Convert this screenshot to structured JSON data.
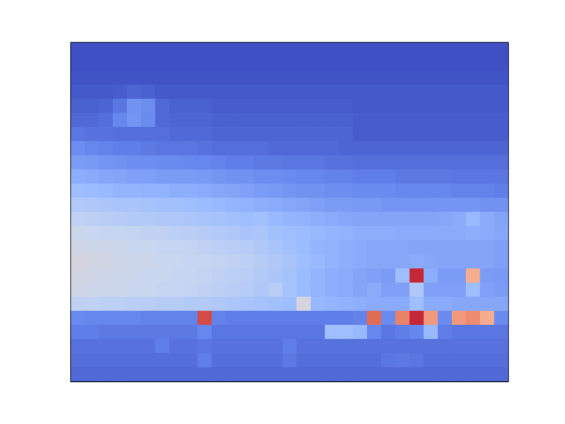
{
  "chart_data": {
    "type": "heatmap",
    "tick_labels": false,
    "color_range": [
      0,
      1
    ],
    "cells": [
      [
        0.01,
        0.01,
        0.01,
        0.01,
        0.01,
        0.01,
        0.01,
        0.01,
        0.01,
        0.01,
        0.01,
        0.01,
        0.01,
        0.01,
        0.01,
        0.01,
        0.01,
        0.01,
        0.01,
        0.01,
        0.01,
        0.01,
        0.01,
        0.01,
        0.01,
        0.01,
        0.01,
        0.01,
        0.01,
        0.01,
        0.01
      ],
      [
        0.01,
        0.01,
        0.01,
        0.01,
        0.01,
        0.01,
        0.01,
        0.01,
        0.01,
        0.01,
        0.01,
        0.01,
        0.01,
        0.01,
        0.01,
        0.01,
        0.01,
        0.01,
        0.01,
        0.01,
        0.01,
        0.01,
        0.01,
        0.01,
        0.01,
        0.01,
        0.01,
        0.01,
        0.01,
        0.01,
        0.01
      ],
      [
        0.02,
        0.02,
        0.02,
        0.02,
        0.02,
        0.02,
        0.02,
        0.02,
        0.02,
        0.02,
        0.02,
        0.02,
        0.02,
        0.02,
        0.02,
        0.02,
        0.02,
        0.02,
        0.02,
        0.02,
        0.02,
        0.02,
        0.02,
        0.02,
        0.02,
        0.02,
        0.02,
        0.02,
        0.02,
        0.02,
        0.02
      ],
      [
        0.03,
        0.03,
        0.03,
        0.04,
        0.06,
        0.05,
        0.03,
        0.03,
        0.03,
        0.03,
        0.03,
        0.03,
        0.03,
        0.03,
        0.03,
        0.03,
        0.03,
        0.03,
        0.03,
        0.03,
        0.03,
        0.03,
        0.03,
        0.03,
        0.03,
        0.03,
        0.03,
        0.03,
        0.03,
        0.03,
        0.03
      ],
      [
        0.05,
        0.05,
        0.06,
        0.1,
        0.17,
        0.16,
        0.07,
        0.05,
        0.05,
        0.05,
        0.04,
        0.04,
        0.04,
        0.04,
        0.04,
        0.04,
        0.04,
        0.04,
        0.04,
        0.04,
        0.03,
        0.03,
        0.03,
        0.03,
        0.03,
        0.03,
        0.03,
        0.03,
        0.03,
        0.03,
        0.03
      ],
      [
        0.07,
        0.07,
        0.08,
        0.14,
        0.18,
        0.15,
        0.07,
        0.06,
        0.06,
        0.06,
        0.05,
        0.05,
        0.05,
        0.05,
        0.05,
        0.05,
        0.05,
        0.05,
        0.05,
        0.05,
        0.04,
        0.04,
        0.04,
        0.04,
        0.04,
        0.04,
        0.04,
        0.04,
        0.04,
        0.04,
        0.04
      ],
      [
        0.1,
        0.09,
        0.09,
        0.08,
        0.08,
        0.08,
        0.08,
        0.07,
        0.07,
        0.07,
        0.06,
        0.06,
        0.06,
        0.06,
        0.06,
        0.06,
        0.06,
        0.06,
        0.06,
        0.06,
        0.04,
        0.04,
        0.04,
        0.04,
        0.04,
        0.04,
        0.04,
        0.04,
        0.04,
        0.04,
        0.04
      ],
      [
        0.16,
        0.14,
        0.13,
        0.12,
        0.12,
        0.11,
        0.1,
        0.1,
        0.1,
        0.09,
        0.08,
        0.08,
        0.08,
        0.08,
        0.07,
        0.07,
        0.07,
        0.07,
        0.07,
        0.06,
        0.06,
        0.06,
        0.06,
        0.06,
        0.06,
        0.06,
        0.06,
        0.06,
        0.06,
        0.06,
        0.06
      ],
      [
        0.2,
        0.19,
        0.18,
        0.17,
        0.16,
        0.16,
        0.15,
        0.15,
        0.14,
        0.14,
        0.13,
        0.12,
        0.12,
        0.11,
        0.11,
        0.1,
        0.1,
        0.1,
        0.09,
        0.09,
        0.08,
        0.08,
        0.08,
        0.08,
        0.08,
        0.08,
        0.08,
        0.08,
        0.08,
        0.08,
        0.08
      ],
      [
        0.25,
        0.24,
        0.23,
        0.22,
        0.21,
        0.21,
        0.2,
        0.2,
        0.2,
        0.19,
        0.18,
        0.17,
        0.17,
        0.16,
        0.16,
        0.15,
        0.14,
        0.14,
        0.13,
        0.13,
        0.12,
        0.12,
        0.12,
        0.11,
        0.11,
        0.11,
        0.11,
        0.1,
        0.1,
        0.1,
        0.1
      ],
      [
        0.3,
        0.29,
        0.28,
        0.27,
        0.27,
        0.26,
        0.26,
        0.25,
        0.25,
        0.24,
        0.23,
        0.22,
        0.21,
        0.2,
        0.19,
        0.18,
        0.17,
        0.17,
        0.16,
        0.16,
        0.15,
        0.15,
        0.15,
        0.14,
        0.14,
        0.14,
        0.14,
        0.13,
        0.13,
        0.13,
        0.12
      ],
      [
        0.36,
        0.35,
        0.34,
        0.33,
        0.33,
        0.32,
        0.31,
        0.31,
        0.3,
        0.29,
        0.28,
        0.27,
        0.26,
        0.25,
        0.24,
        0.23,
        0.22,
        0.21,
        0.2,
        0.2,
        0.19,
        0.19,
        0.18,
        0.18,
        0.18,
        0.18,
        0.18,
        0.18,
        0.18,
        0.17,
        0.17
      ],
      [
        0.4,
        0.39,
        0.38,
        0.37,
        0.36,
        0.36,
        0.35,
        0.35,
        0.34,
        0.33,
        0.32,
        0.31,
        0.3,
        0.31,
        0.28,
        0.27,
        0.26,
        0.25,
        0.24,
        0.23,
        0.22,
        0.22,
        0.22,
        0.22,
        0.22,
        0.22,
        0.23,
        0.24,
        0.28,
        0.24,
        0.22
      ],
      [
        0.44,
        0.43,
        0.42,
        0.42,
        0.41,
        0.4,
        0.4,
        0.39,
        0.38,
        0.37,
        0.36,
        0.35,
        0.33,
        0.34,
        0.31,
        0.3,
        0.29,
        0.28,
        0.27,
        0.26,
        0.25,
        0.25,
        0.25,
        0.24,
        0.24,
        0.24,
        0.24,
        0.24,
        0.25,
        0.24,
        0.23
      ],
      [
        0.46,
        0.45,
        0.45,
        0.44,
        0.43,
        0.43,
        0.42,
        0.42,
        0.41,
        0.4,
        0.39,
        0.38,
        0.37,
        0.35,
        0.33,
        0.31,
        0.29,
        0.27,
        0.26,
        0.25,
        0.24,
        0.23,
        0.23,
        0.23,
        0.22,
        0.22,
        0.22,
        0.22,
        0.22,
        0.22,
        0.21
      ],
      [
        0.48,
        0.47,
        0.46,
        0.45,
        0.44,
        0.44,
        0.43,
        0.43,
        0.42,
        0.42,
        0.41,
        0.4,
        0.39,
        0.37,
        0.35,
        0.33,
        0.3,
        0.28,
        0.26,
        0.25,
        0.24,
        0.23,
        0.23,
        0.23,
        0.24,
        0.23,
        0.22,
        0.22,
        0.22,
        0.22,
        0.21
      ],
      [
        0.47,
        0.46,
        0.45,
        0.44,
        0.44,
        0.43,
        0.43,
        0.42,
        0.42,
        0.41,
        0.4,
        0.39,
        0.38,
        0.36,
        0.34,
        0.32,
        0.29,
        0.27,
        0.25,
        0.24,
        0.22,
        0.21,
        0.2,
        0.3,
        0.95,
        0.25,
        0.2,
        0.2,
        0.7,
        0.2,
        0.19
      ],
      [
        0.46,
        0.45,
        0.44,
        0.44,
        0.43,
        0.43,
        0.42,
        0.42,
        0.41,
        0.4,
        0.39,
        0.38,
        0.37,
        0.35,
        0.38,
        0.32,
        0.29,
        0.27,
        0.25,
        0.24,
        0.22,
        0.24,
        0.21,
        0.21,
        0.35,
        0.21,
        0.21,
        0.21,
        0.3,
        0.21,
        0.2
      ],
      [
        0.4,
        0.4,
        0.39,
        0.39,
        0.38,
        0.38,
        0.37,
        0.37,
        0.36,
        0.36,
        0.35,
        0.34,
        0.33,
        0.32,
        0.31,
        0.3,
        0.48,
        0.28,
        0.27,
        0.26,
        0.25,
        0.24,
        0.24,
        0.24,
        0.3,
        0.24,
        0.24,
        0.23,
        0.23,
        0.23,
        0.23
      ],
      [
        0.15,
        0.14,
        0.14,
        0.14,
        0.14,
        0.13,
        0.13,
        0.13,
        0.13,
        0.9,
        0.13,
        0.12,
        0.12,
        0.12,
        0.12,
        0.12,
        0.12,
        0.12,
        0.12,
        0.12,
        0.13,
        0.85,
        0.15,
        0.8,
        0.95,
        0.75,
        0.15,
        0.75,
        0.78,
        0.7,
        0.15
      ],
      [
        0.12,
        0.12,
        0.11,
        0.11,
        0.11,
        0.11,
        0.11,
        0.11,
        0.11,
        0.14,
        0.1,
        0.1,
        0.1,
        0.1,
        0.1,
        0.1,
        0.1,
        0.1,
        0.3,
        0.3,
        0.28,
        0.14,
        0.1,
        0.12,
        0.14,
        0.28,
        0.12,
        0.1,
        0.1,
        0.1,
        0.1
      ],
      [
        0.09,
        0.09,
        0.09,
        0.09,
        0.09,
        0.09,
        0.12,
        0.09,
        0.09,
        0.1,
        0.09,
        0.09,
        0.09,
        0.09,
        0.09,
        0.12,
        0.09,
        0.09,
        0.09,
        0.09,
        0.09,
        0.09,
        0.09,
        0.09,
        0.09,
        0.09,
        0.09,
        0.09,
        0.09,
        0.09,
        0.09
      ],
      [
        0.08,
        0.08,
        0.08,
        0.08,
        0.08,
        0.08,
        0.08,
        0.08,
        0.08,
        0.12,
        0.08,
        0.08,
        0.08,
        0.08,
        0.08,
        0.11,
        0.08,
        0.08,
        0.08,
        0.08,
        0.08,
        0.08,
        0.1,
        0.11,
        0.1,
        0.08,
        0.08,
        0.08,
        0.08,
        0.08,
        0.08
      ],
      [
        0.07,
        0.07,
        0.07,
        0.07,
        0.07,
        0.07,
        0.07,
        0.07,
        0.07,
        0.07,
        0.07,
        0.07,
        0.07,
        0.07,
        0.07,
        0.07,
        0.07,
        0.07,
        0.07,
        0.07,
        0.07,
        0.07,
        0.07,
        0.07,
        0.07,
        0.07,
        0.07,
        0.07,
        0.07,
        0.07,
        0.07
      ]
    ]
  }
}
